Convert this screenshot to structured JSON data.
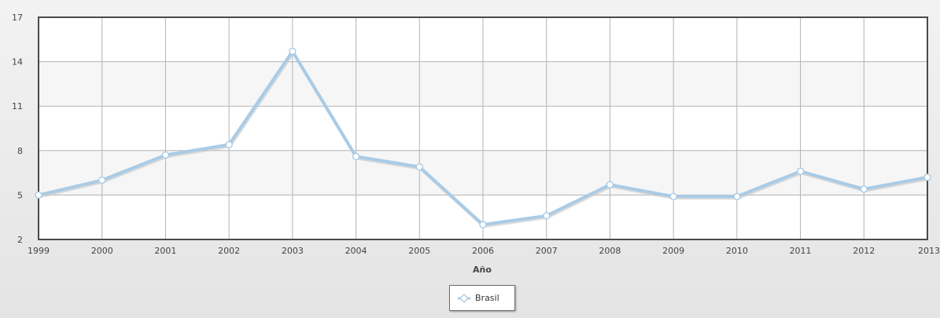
{
  "chart_data": {
    "type": "line",
    "title": "",
    "xlabel": "Año",
    "ylabel": "",
    "x": [
      "1999",
      "2000",
      "2001",
      "2002",
      "2003",
      "2004",
      "2005",
      "2006",
      "2007",
      "2008",
      "2009",
      "2010",
      "2011",
      "2012",
      "2013"
    ],
    "series": [
      {
        "name": "Brasil",
        "values": [
          5.0,
          6.0,
          7.7,
          8.4,
          14.7,
          7.6,
          6.9,
          3.0,
          3.6,
          5.7,
          4.9,
          4.9,
          6.6,
          5.4,
          6.2
        ]
      }
    ],
    "ylim": [
      2,
      17
    ],
    "yticks": [
      2,
      5,
      8,
      11,
      14,
      17
    ],
    "grid": true,
    "legend_position": "bottom-center",
    "colors": {
      "line": "#a9cbe6",
      "line_shadow": "#c4c4c4",
      "marker_fill": "#ffffff",
      "marker_stroke": "#a9cbe6",
      "band": "#f6f6f6",
      "grid": "#b3b3b3",
      "frame": "#4a4a4a"
    }
  }
}
